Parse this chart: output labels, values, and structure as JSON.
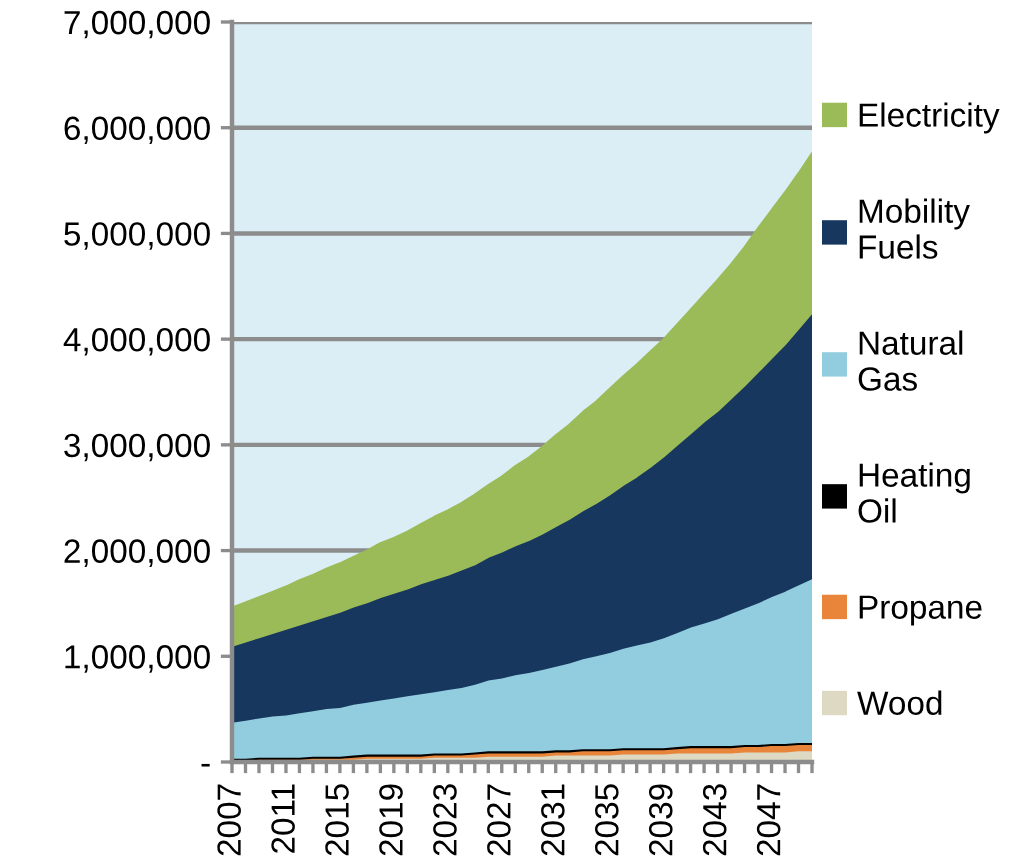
{
  "chart_data": {
    "type": "area",
    "stacked": true,
    "legend": "right",
    "grid": "y",
    "x": [
      2007,
      2008,
      2009,
      2010,
      2011,
      2012,
      2013,
      2014,
      2015,
      2016,
      2017,
      2018,
      2019,
      2020,
      2021,
      2022,
      2023,
      2024,
      2025,
      2026,
      2027,
      2028,
      2029,
      2030,
      2031,
      2032,
      2033,
      2034,
      2035,
      2036,
      2037,
      2038,
      2039,
      2040,
      2041,
      2042,
      2043,
      2044,
      2045,
      2046,
      2047,
      2048,
      2049,
      2050
    ],
    "xlim": [
      2007,
      2050
    ],
    "xticks": [
      2007,
      {
        "value": 2008,
        "label": null
      },
      {
        "value": 2009,
        "label": null
      },
      {
        "value": 2010,
        "label": null
      },
      2011,
      {
        "value": 2012,
        "label": null
      },
      {
        "value": 2013,
        "label": null
      },
      {
        "value": 2014,
        "label": null
      },
      2015,
      {
        "value": 2016,
        "label": null
      },
      {
        "value": 2017,
        "label": null
      },
      {
        "value": 2018,
        "label": null
      },
      2019,
      {
        "value": 2020,
        "label": null
      },
      {
        "value": 2021,
        "label": null
      },
      {
        "value": 2022,
        "label": null
      },
      2023,
      {
        "value": 2024,
        "label": null
      },
      {
        "value": 2025,
        "label": null
      },
      {
        "value": 2026,
        "label": null
      },
      2027,
      {
        "value": 2028,
        "label": null
      },
      {
        "value": 2029,
        "label": null
      },
      {
        "value": 2030,
        "label": null
      },
      2031,
      {
        "value": 2032,
        "label": null
      },
      {
        "value": 2033,
        "label": null
      },
      {
        "value": 2034,
        "label": null
      },
      2035,
      {
        "value": 2036,
        "label": null
      },
      {
        "value": 2037,
        "label": null
      },
      {
        "value": 2038,
        "label": null
      },
      2039,
      {
        "value": 2040,
        "label": null
      },
      {
        "value": 2041,
        "label": null
      },
      {
        "value": 2042,
        "label": null
      },
      2043,
      {
        "value": 2044,
        "label": null
      },
      {
        "value": 2045,
        "label": null
      },
      {
        "value": 2046,
        "label": null
      },
      2047,
      {
        "value": 2048,
        "label": null
      },
      {
        "value": 2049,
        "label": null
      },
      {
        "value": 2050,
        "label": null
      }
    ],
    "ylim": [
      0,
      7000000
    ],
    "yticks": [
      {
        "value": 0,
        "label": "-"
      },
      {
        "value": 1000000,
        "label": "1,000,000"
      },
      {
        "value": 2000000,
        "label": "2,000,000"
      },
      {
        "value": 3000000,
        "label": "3,000,000"
      },
      {
        "value": 4000000,
        "label": "4,000,000"
      },
      {
        "value": 5000000,
        "label": "5,000,000"
      },
      {
        "value": 6000000,
        "label": "6,000,000"
      },
      {
        "value": 7000000,
        "label": "7,000,000"
      }
    ],
    "series": [
      {
        "name": "Wood",
        "color": "#ddd9c3",
        "values": [
          10000,
          10000,
          20000,
          20000,
          20000,
          20000,
          30000,
          30000,
          30000,
          30000,
          40000,
          40000,
          40000,
          40000,
          40000,
          50000,
          50000,
          50000,
          50000,
          60000,
          60000,
          60000,
          60000,
          60000,
          70000,
          70000,
          70000,
          70000,
          70000,
          80000,
          80000,
          80000,
          80000,
          90000,
          90000,
          90000,
          90000,
          90000,
          100000,
          100000,
          100000,
          100000,
          110000,
          110000
        ]
      },
      {
        "name": "Propane",
        "color": "#e8853a",
        "values": [
          10000,
          10000,
          10000,
          10000,
          10000,
          10000,
          10000,
          10000,
          10000,
          20000,
          20000,
          20000,
          20000,
          20000,
          20000,
          20000,
          20000,
          20000,
          30000,
          30000,
          30000,
          30000,
          30000,
          30000,
          30000,
          30000,
          40000,
          40000,
          40000,
          40000,
          40000,
          40000,
          40000,
          40000,
          50000,
          50000,
          50000,
          50000,
          50000,
          50000,
          60000,
          60000,
          60000,
          60000
        ]
      },
      {
        "name": "Heating Oil",
        "color": "#000000",
        "values": [
          20000,
          20000,
          20000,
          20000,
          20000,
          20000,
          20000,
          20000,
          20000,
          20000,
          20000,
          20000,
          20000,
          20000,
          20000,
          20000,
          20000,
          20000,
          20000,
          20000,
          20000,
          20000,
          20000,
          20000,
          20000,
          20000,
          20000,
          20000,
          20000,
          20000,
          20000,
          20000,
          20000,
          20000,
          20000,
          20000,
          20000,
          20000,
          20000,
          20000,
          20000,
          20000,
          20000,
          20000
        ]
      },
      {
        "name": "Natural Gas",
        "color": "#92cddf",
        "values": [
          340000,
          360000,
          370000,
          390000,
          400000,
          420000,
          430000,
          450000,
          460000,
          480000,
          490000,
          510000,
          530000,
          550000,
          570000,
          580000,
          600000,
          620000,
          640000,
          670000,
          690000,
          720000,
          740000,
          770000,
          790000,
          820000,
          850000,
          880000,
          910000,
          940000,
          970000,
          1000000,
          1040000,
          1080000,
          1120000,
          1160000,
          1200000,
          1250000,
          1290000,
          1340000,
          1390000,
          1440000,
          1490000,
          1550000
        ]
      },
      {
        "name": "Mobility Fuels",
        "color": "#17375e",
        "values": [
          720000,
          740000,
          760000,
          780000,
          810000,
          830000,
          850000,
          870000,
          900000,
          920000,
          940000,
          970000,
          990000,
          1010000,
          1040000,
          1060000,
          1080000,
          1110000,
          1130000,
          1160000,
          1190000,
          1220000,
          1250000,
          1280000,
          1320000,
          1360000,
          1400000,
          1440000,
          1490000,
          1540000,
          1590000,
          1650000,
          1710000,
          1770000,
          1830000,
          1900000,
          1960000,
          2030000,
          2100000,
          2180000,
          2250000,
          2330000,
          2420000,
          2510000
        ]
      },
      {
        "name": "Electricity",
        "color": "#9bbb59",
        "values": [
          360000,
          370000,
          380000,
          390000,
          400000,
          420000,
          430000,
          450000,
          460000,
          470000,
          490000,
          510000,
          520000,
          540000,
          560000,
          590000,
          610000,
          630000,
          660000,
          680000,
          710000,
          750000,
          780000,
          820000,
          860000,
          890000,
          930000,
          960000,
          1000000,
          1030000,
          1060000,
          1090000,
          1110000,
          1140000,
          1170000,
          1200000,
          1240000,
          1270000,
          1310000,
          1360000,
          1400000,
          1440000,
          1470000,
          1510000
        ]
      }
    ]
  }
}
